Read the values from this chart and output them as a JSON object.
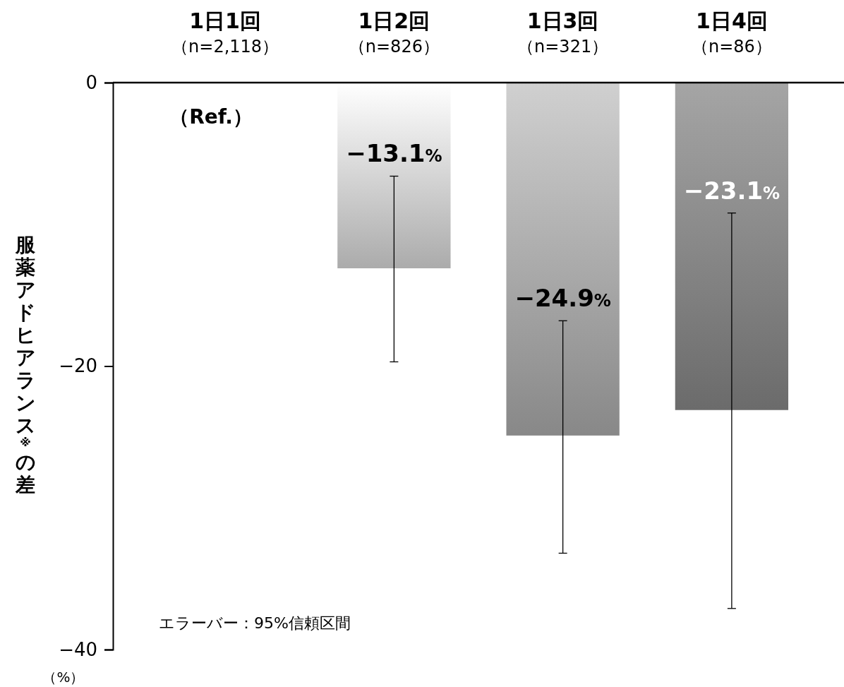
{
  "chart_data": {
    "type": "bar",
    "categories": [
      "1日1回（n=2,118）",
      "1日2回（n=826）",
      "1日3回（n=321）",
      "1日4回（n=86）"
    ],
    "values": [
      0,
      -13.1,
      -24.9,
      -23.1
    ],
    "colors": [
      "#e8e8e8",
      "#d4d4d4",
      "#a8a8a8",
      "#858585"
    ],
    "errors": [
      null,
      [
        -19.7,
        -6.6
      ],
      [
        -33.2,
        -16.8
      ],
      [
        -37.1,
        -9.2
      ]
    ],
    "value_labels": [
      "（Ref.）",
      "−13.1%",
      "−24.9%",
      "−23.1%"
    ],
    "ylim": [
      -40,
      0
    ],
    "yticks": [
      0,
      {
        "value": -20,
        "label": "−20"
      },
      {
        "value": -40,
        "label": "−40"
      }
    ],
    "ylabel": "服薬アドヒアランス※の差",
    "annotations": [
      "エラーバー：95%信頼区間",
      "（%）"
    ],
    "grid": false
  }
}
